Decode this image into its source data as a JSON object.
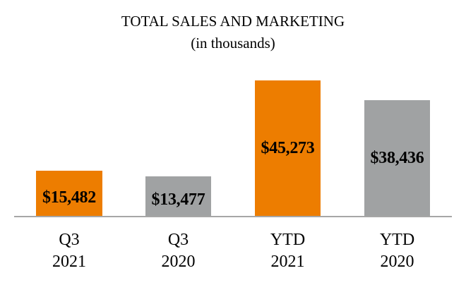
{
  "header": {
    "title": "TOTAL SALES AND MARKETING",
    "subtitle": "(in thousands)"
  },
  "colors": {
    "current_year": "#ED7D00",
    "prior_year": "#A0A2A3",
    "axis": "#A6A6A6"
  },
  "chart_data": {
    "type": "bar",
    "title": "TOTAL SALES AND MARKETING",
    "subtitle": "(in thousands)",
    "xlabel": "",
    "ylabel": "",
    "unit": "thousands of USD",
    "categories": [
      "Q3 2021",
      "Q3 2020",
      "YTD 2021",
      "YTD 2020"
    ],
    "values": [
      15482,
      13477,
      45273,
      38436
    ],
    "data_labels": [
      "$15,482",
      "$13,477",
      "$45,273",
      "$38,436"
    ],
    "bar_colors": [
      "#ED7D00",
      "#A0A2A3",
      "#ED7D00",
      "#A0A2A3"
    ],
    "grid": false,
    "legend": null,
    "ylim": [
      0,
      48000
    ],
    "y_axis_visible": false
  },
  "bars": [
    {
      "line1": "Q3",
      "line2": "2021",
      "label": "$15,482",
      "color": "#ED7D00",
      "left": 51,
      "width": 94,
      "top": 242,
      "label_offset": 12
    },
    {
      "line1": "Q3",
      "line2": "2020",
      "label": "$13,477",
      "color": "#A0A2A3",
      "left": 206,
      "width": 93,
      "top": 250,
      "label_offset": 10
    },
    {
      "line1": "YTD",
      "line2": "2021",
      "label": "$45,273",
      "color": "#ED7D00",
      "left": 361,
      "width": 93,
      "top": 114,
      "label_offset": 0
    },
    {
      "line1": "YTD",
      "line2": "2020",
      "label": "$38,436",
      "color": "#A0A2A3",
      "left": 516,
      "width": 93,
      "top": 142,
      "label_offset": 0
    }
  ]
}
